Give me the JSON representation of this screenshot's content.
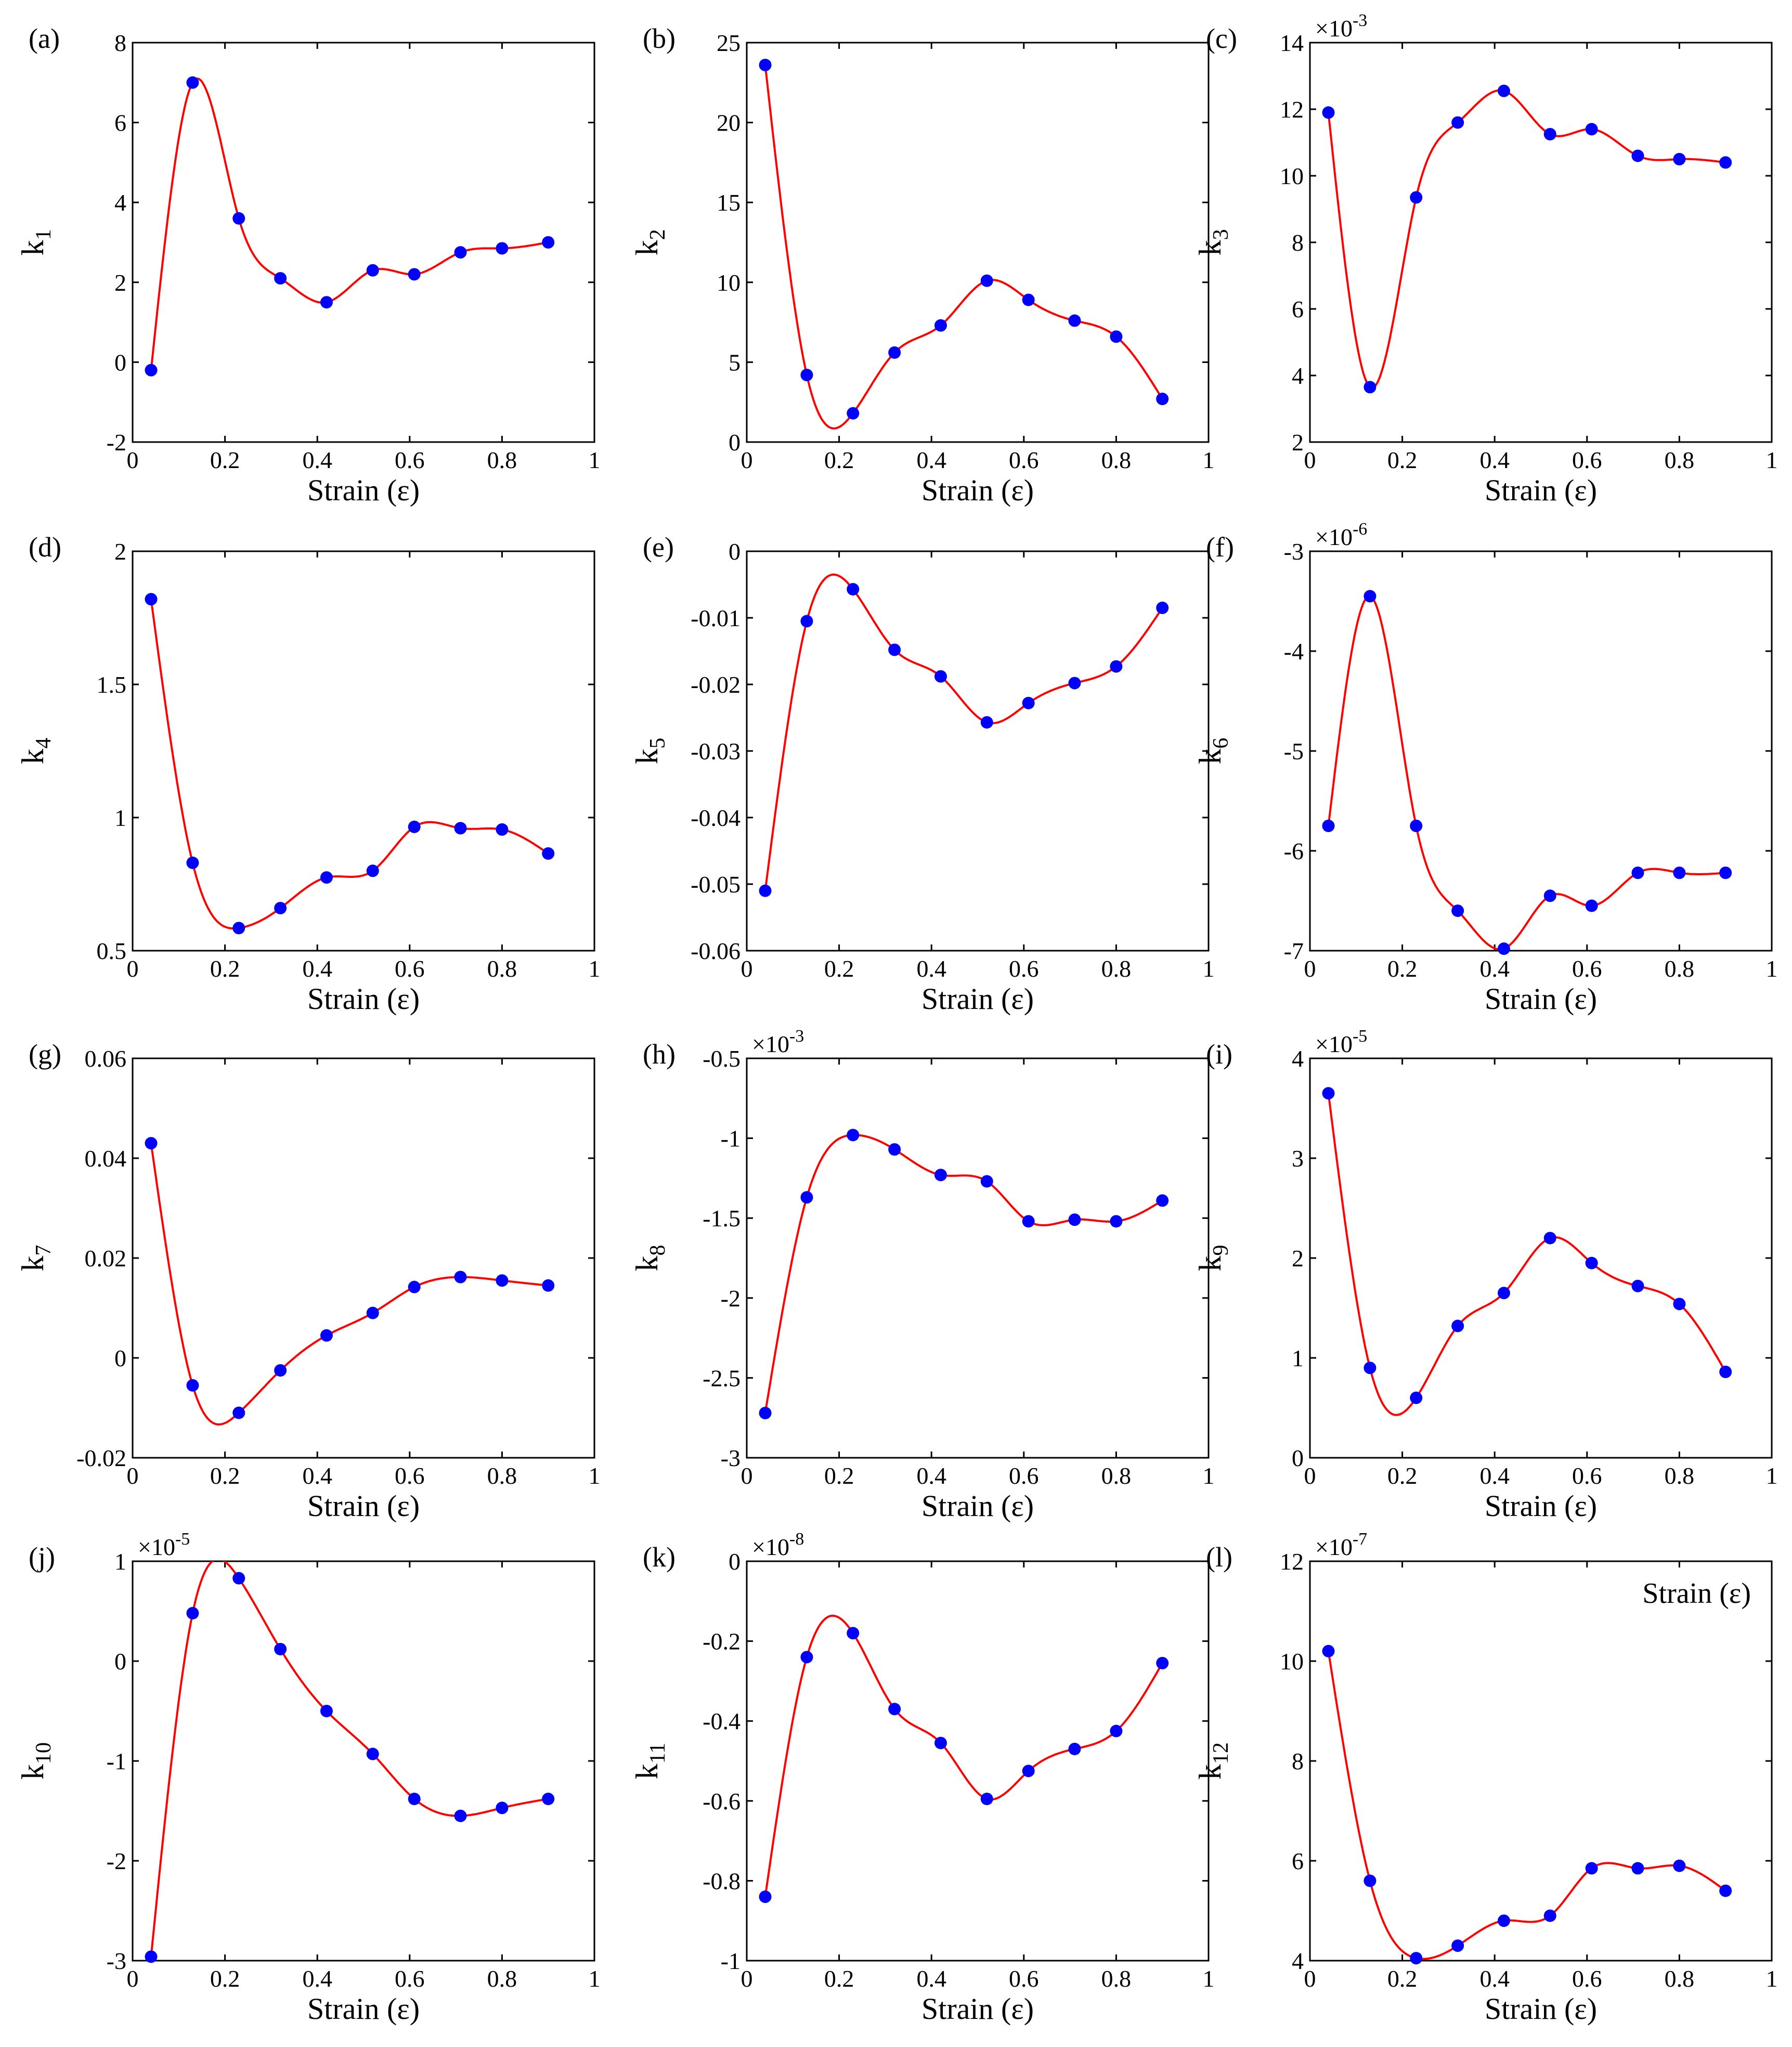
{
  "figure": {
    "x_label": "Strain (ε)",
    "x_ticks": [
      0,
      0.2,
      0.4,
      0.6,
      0.8,
      1
    ]
  },
  "colors": {
    "fit_line": "#ff0000",
    "markers": "#0000ff",
    "axes": "#000000"
  },
  "chart_data": [
    {
      "panel": "(a)",
      "type": "scatter",
      "fit": "spline",
      "ylabel_base": "k",
      "ylabel_sub": "1",
      "xlabel": "Strain (ε)",
      "xlim": [
        0,
        1
      ],
      "ylim": [
        -2,
        8
      ],
      "yticks": [
        "-2",
        "0",
        "2",
        "4",
        "6",
        "8"
      ],
      "multiplier": null,
      "x": [
        0.04,
        0.13,
        0.23,
        0.32,
        0.42,
        0.52,
        0.61,
        0.71,
        0.8,
        0.9
      ],
      "y": [
        -0.2,
        7.0,
        3.6,
        2.1,
        1.5,
        2.3,
        2.2,
        2.75,
        2.85,
        3.0
      ]
    },
    {
      "panel": "(b)",
      "type": "scatter",
      "fit": "spline",
      "ylabel_base": "k",
      "ylabel_sub": "2",
      "xlabel": "Strain (ε)",
      "xlim": [
        0,
        1
      ],
      "ylim": [
        0,
        25
      ],
      "yticks": [
        "0",
        "5",
        "10",
        "15",
        "20",
        "25"
      ],
      "multiplier": null,
      "x": [
        0.04,
        0.13,
        0.23,
        0.32,
        0.42,
        0.52,
        0.61,
        0.71,
        0.8,
        0.9
      ],
      "y": [
        23.6,
        4.2,
        1.8,
        5.6,
        7.3,
        10.1,
        8.9,
        7.6,
        6.6,
        2.7
      ]
    },
    {
      "panel": "(c)",
      "type": "scatter",
      "fit": "spline",
      "ylabel_base": "k",
      "ylabel_sub": "3",
      "xlabel": "Strain (ε)",
      "xlim": [
        0,
        1
      ],
      "ylim": [
        2,
        14
      ],
      "yticks": [
        "2",
        "4",
        "6",
        "8",
        "10",
        "12",
        "14"
      ],
      "multiplier": {
        "base": "×10",
        "exp": "-3"
      },
      "x": [
        0.04,
        0.13,
        0.23,
        0.32,
        0.42,
        0.52,
        0.61,
        0.71,
        0.8,
        0.9
      ],
      "y": [
        11.9,
        3.65,
        9.35,
        11.6,
        12.55,
        11.25,
        11.4,
        10.6,
        10.5,
        10.4
      ]
    },
    {
      "panel": "(d)",
      "type": "scatter",
      "fit": "spline",
      "ylabel_base": "k",
      "ylabel_sub": "4",
      "xlabel": "Strain (ε)",
      "xlim": [
        0,
        1
      ],
      "ylim": [
        0.5,
        2
      ],
      "yticks": [
        "0.5",
        "1",
        "1.5",
        "2"
      ],
      "multiplier": null,
      "x": [
        0.04,
        0.13,
        0.23,
        0.32,
        0.42,
        0.52,
        0.61,
        0.71,
        0.8,
        0.9
      ],
      "y": [
        1.82,
        0.83,
        0.585,
        0.66,
        0.775,
        0.8,
        0.965,
        0.96,
        0.955,
        0.865
      ]
    },
    {
      "panel": "(e)",
      "type": "scatter",
      "fit": "spline",
      "ylabel_base": "k",
      "ylabel_sub": "5",
      "xlabel": "Strain (ε)",
      "xlim": [
        0,
        1
      ],
      "ylim": [
        -0.06,
        0
      ],
      "yticks": [
        "-0.06",
        "-0.05",
        "-0.04",
        "-0.03",
        "-0.02",
        "-0.01",
        "0"
      ],
      "multiplier": null,
      "x": [
        0.04,
        0.13,
        0.23,
        0.32,
        0.42,
        0.52,
        0.61,
        0.71,
        0.8,
        0.9
      ],
      "y": [
        -0.051,
        -0.0105,
        -0.0057,
        -0.0148,
        -0.0188,
        -0.0257,
        -0.0228,
        -0.0198,
        -0.0173,
        -0.0085
      ]
    },
    {
      "panel": "(f)",
      "type": "scatter",
      "fit": "spline",
      "ylabel_base": "k",
      "ylabel_sub": "6",
      "xlabel": "Strain (ε)",
      "xlim": [
        0,
        1
      ],
      "ylim": [
        -7,
        -3
      ],
      "yticks": [
        "-7",
        "-6",
        "-5",
        "-4",
        "-3"
      ],
      "multiplier": {
        "base": "×10",
        "exp": "-6"
      },
      "x": [
        0.04,
        0.13,
        0.23,
        0.32,
        0.42,
        0.52,
        0.61,
        0.71,
        0.8,
        0.9
      ],
      "y": [
        -5.75,
        -3.45,
        -5.75,
        -6.6,
        -6.98,
        -6.45,
        -6.55,
        -6.22,
        -6.22,
        -6.22
      ]
    },
    {
      "panel": "(g)",
      "type": "scatter",
      "fit": "spline",
      "ylabel_base": "k",
      "ylabel_sub": "7",
      "xlabel": "Strain (ε)",
      "xlim": [
        0,
        1
      ],
      "ylim": [
        -0.02,
        0.06
      ],
      "yticks": [
        "-0.02",
        "0",
        "0.02",
        "0.04",
        "0.06"
      ],
      "multiplier": null,
      "x": [
        0.04,
        0.13,
        0.23,
        0.32,
        0.42,
        0.52,
        0.61,
        0.71,
        0.8,
        0.9
      ],
      "y": [
        0.043,
        -0.0055,
        -0.011,
        -0.0025,
        0.0045,
        0.009,
        0.0142,
        0.0162,
        0.0155,
        0.0145
      ]
    },
    {
      "panel": "(h)",
      "type": "scatter",
      "fit": "spline",
      "ylabel_base": "k",
      "ylabel_sub": "8",
      "xlabel": "Strain (ε)",
      "xlim": [
        0,
        1
      ],
      "ylim": [
        -3,
        -0.5
      ],
      "yticks": [
        "-3",
        "-2.5",
        "-2",
        "-1.5",
        "-1",
        "-0.5"
      ],
      "multiplier": {
        "base": "×10",
        "exp": "-3"
      },
      "x": [
        0.04,
        0.13,
        0.23,
        0.32,
        0.42,
        0.52,
        0.61,
        0.71,
        0.8,
        0.9
      ],
      "y": [
        -2.72,
        -1.37,
        -0.98,
        -1.07,
        -1.23,
        -1.27,
        -1.52,
        -1.51,
        -1.52,
        -1.39
      ]
    },
    {
      "panel": "(i)",
      "type": "scatter",
      "fit": "spline",
      "ylabel_base": "k",
      "ylabel_sub": "9",
      "xlabel": "Strain (ε)",
      "xlim": [
        0,
        1
      ],
      "ylim": [
        0,
        4
      ],
      "yticks": [
        "0",
        "1",
        "2",
        "3",
        "4"
      ],
      "multiplier": {
        "base": "×10",
        "exp": "-5"
      },
      "x": [
        0.04,
        0.13,
        0.23,
        0.32,
        0.42,
        0.52,
        0.61,
        0.71,
        0.8,
        0.9
      ],
      "y": [
        3.65,
        0.9,
        0.6,
        1.32,
        1.65,
        2.2,
        1.95,
        1.72,
        1.54,
        0.86
      ]
    },
    {
      "panel": "(j)",
      "type": "scatter",
      "fit": "spline",
      "ylabel_base": "k",
      "ylabel_sub": "10",
      "xlabel": "Strain (ε)",
      "xlim": [
        0,
        1
      ],
      "ylim": [
        -3,
        1
      ],
      "yticks": [
        "-3",
        "-2",
        "-1",
        "0",
        "1"
      ],
      "multiplier": {
        "base": "×10",
        "exp": "-5"
      },
      "x": [
        0.04,
        0.13,
        0.23,
        0.32,
        0.42,
        0.52,
        0.61,
        0.71,
        0.8,
        0.9
      ],
      "y": [
        -2.96,
        0.48,
        0.83,
        0.12,
        -0.5,
        -0.93,
        -1.38,
        -1.55,
        -1.47,
        -1.38
      ]
    },
    {
      "panel": "(k)",
      "type": "scatter",
      "fit": "spline",
      "ylabel_base": "k",
      "ylabel_sub": "11",
      "xlabel": "Strain (ε)",
      "xlim": [
        0,
        1
      ],
      "ylim": [
        -1,
        0
      ],
      "yticks": [
        "-1",
        "-0.8",
        "-0.6",
        "-0.4",
        "-0.2",
        "0"
      ],
      "multiplier": {
        "base": "×10",
        "exp": "-8"
      },
      "x": [
        0.04,
        0.13,
        0.23,
        0.32,
        0.42,
        0.52,
        0.61,
        0.71,
        0.8,
        0.9
      ],
      "y": [
        -0.84,
        -0.24,
        -0.18,
        -0.37,
        -0.455,
        -0.595,
        -0.525,
        -0.47,
        -0.425,
        -0.255
      ]
    },
    {
      "panel": "(l)",
      "type": "scatter",
      "fit": "spline",
      "ylabel_base": "k",
      "ylabel_sub": "12",
      "xlabel": "Strain (ε)",
      "xlim": [
        0,
        1
      ],
      "ylim": [
        4,
        12
      ],
      "yticks": [
        "4",
        "6",
        "8",
        "10",
        "12"
      ],
      "multiplier": {
        "base": "×10",
        "exp": "-7"
      },
      "annotation": "Strain (ε)",
      "x": [
        0.04,
        0.13,
        0.23,
        0.32,
        0.42,
        0.52,
        0.61,
        0.71,
        0.8,
        0.9
      ],
      "y": [
        10.2,
        5.6,
        4.05,
        4.3,
        4.8,
        4.9,
        5.85,
        5.85,
        5.9,
        5.4
      ]
    }
  ]
}
